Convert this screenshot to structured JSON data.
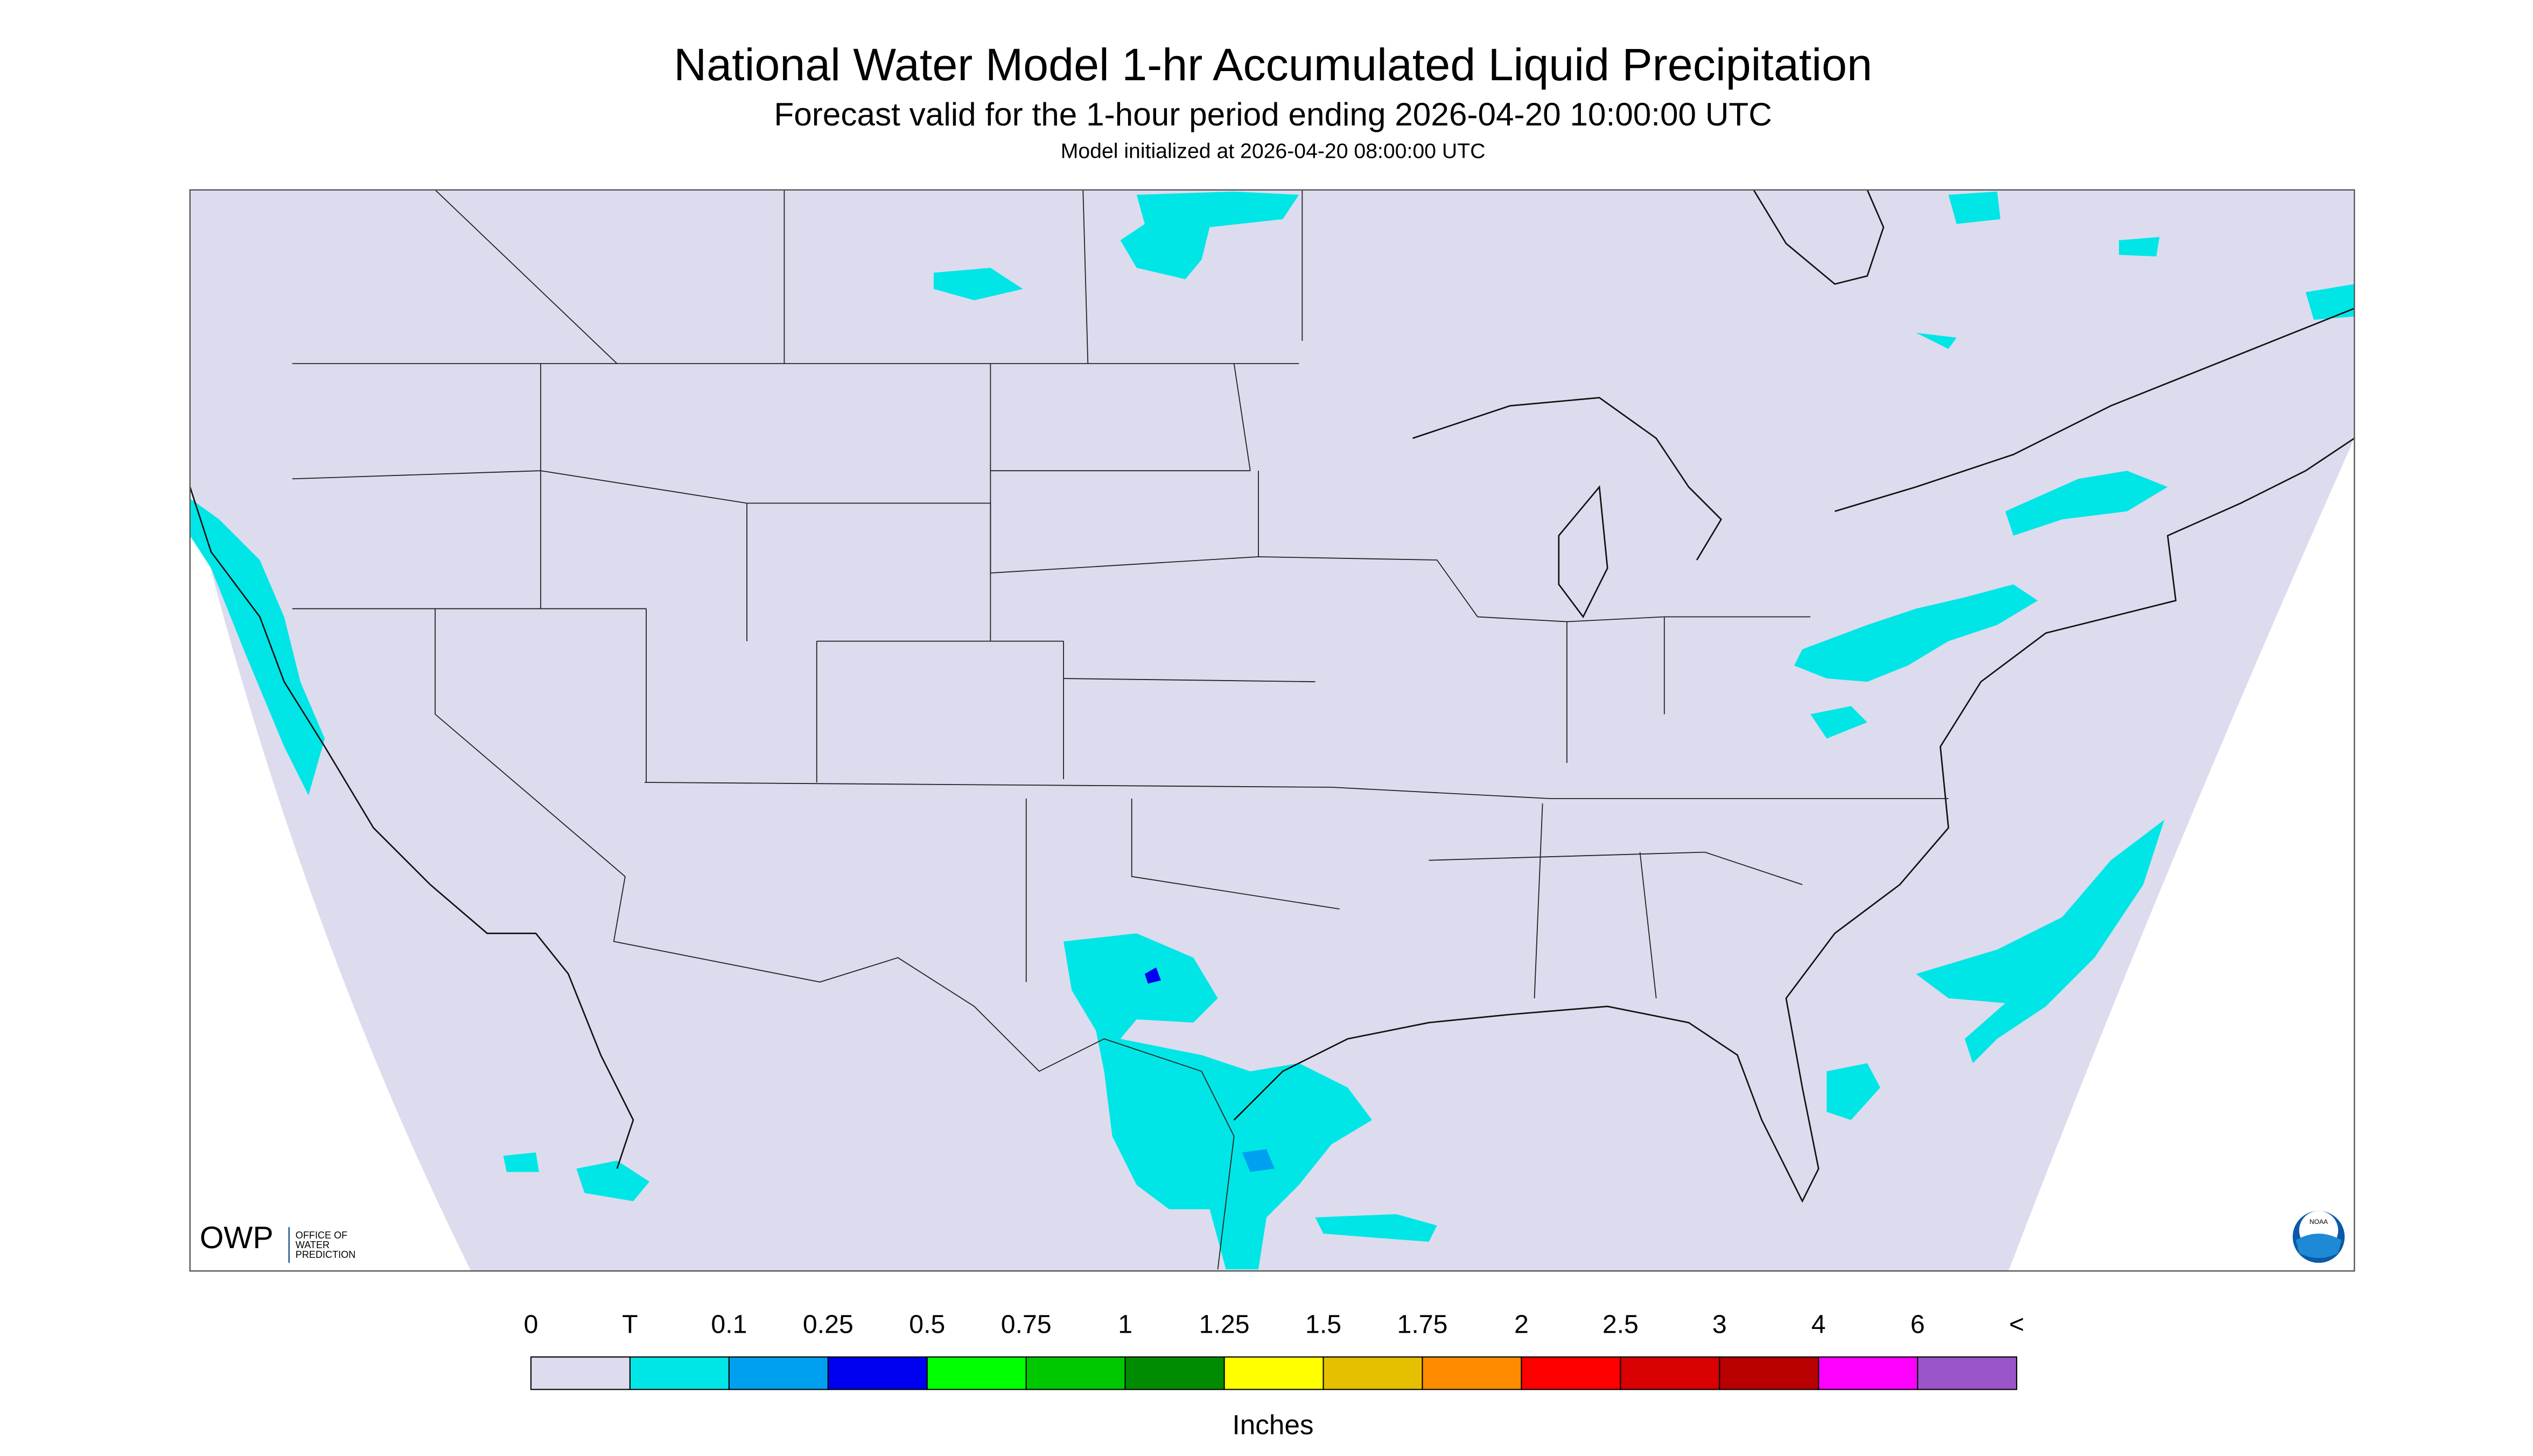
{
  "header": {
    "title": "National Water Model 1-hr Accumulated Liquid Precipitation",
    "subtitle": "Forecast valid for the 1-hour period ending 2026-04-20 10:00:00 UTC",
    "init": "Model initialized at 2026-04-20 08:00:00 UTC"
  },
  "logo": {
    "owp": "OWP",
    "owp_text": [
      "OFFICE OF",
      "WATER",
      "PREDICTION"
    ],
    "noaa": "NOAA"
  },
  "legend": {
    "labels": [
      "0",
      "T",
      "0.1",
      "0.25",
      "0.5",
      "0.75",
      "1",
      "1.25",
      "1.5",
      "1.75",
      "2",
      "2.5",
      "3",
      "4",
      "6",
      "<"
    ],
    "colors": [
      "#dcdcee",
      "#00e6e6",
      "#00a0f0",
      "#0000f0",
      "#00ff00",
      "#00c800",
      "#008c00",
      "#ffff00",
      "#e6c000",
      "#ff8c00",
      "#ff0000",
      "#d80000",
      "#b80000",
      "#ff00ff",
      "#9955c9"
    ],
    "unit": "Inches"
  }
}
